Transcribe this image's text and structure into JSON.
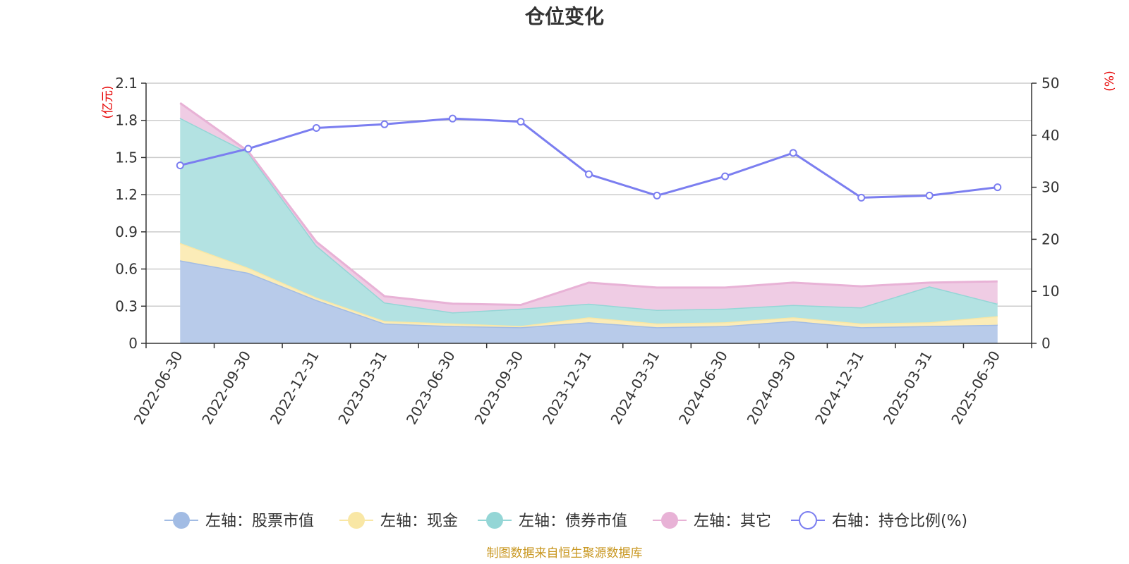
{
  "chart_data": {
    "type": "area",
    "title": "仓位变化",
    "left_axis_unit": "(亿元)",
    "right_axis_unit": "(%)",
    "left_ylim": [
      0,
      2.1
    ],
    "left_ticks": [
      "0",
      "0.3",
      "0.6",
      "0.9",
      "1.2",
      "1.5",
      "1.8",
      "2.1"
    ],
    "right_ylim": [
      0,
      50
    ],
    "right_ticks": [
      "0",
      "10",
      "20",
      "30",
      "40",
      "50"
    ],
    "grid": true,
    "stacked": true,
    "legend_position": "bottom",
    "categories": [
      "2022-06-30",
      "2022-09-30",
      "2022-12-31",
      "2023-03-31",
      "2023-06-30",
      "2023-09-30",
      "2023-12-31",
      "2024-03-31",
      "2024-06-30",
      "2024-09-30",
      "2024-12-31",
      "2025-03-31",
      "2025-06-30"
    ],
    "series": [
      {
        "name": "左轴：股票市值",
        "axis": "left",
        "kind": "area",
        "color": "#a2bce4",
        "fill": "#b8cbea",
        "values": [
          0.67,
          0.57,
          0.35,
          0.16,
          0.14,
          0.13,
          0.17,
          0.13,
          0.14,
          0.18,
          0.13,
          0.14,
          0.15
        ]
      },
      {
        "name": "左轴：现金",
        "axis": "left",
        "kind": "area",
        "color": "#f9e7a5",
        "fill": "#fbecb8",
        "values": [
          0.14,
          0.04,
          0.02,
          0.02,
          0.02,
          0.01,
          0.04,
          0.03,
          0.03,
          0.03,
          0.03,
          0.03,
          0.07
        ]
      },
      {
        "name": "左轴：债券市值",
        "axis": "left",
        "kind": "area",
        "color": "#94d6d6",
        "fill": "#b3e2e2",
        "values": [
          1.01,
          0.93,
          0.42,
          0.15,
          0.09,
          0.14,
          0.11,
          0.11,
          0.11,
          0.1,
          0.13,
          0.29,
          0.1
        ]
      },
      {
        "name": "左轴：其它",
        "axis": "left",
        "kind": "area",
        "color": "#e8b2d6",
        "fill": "#efcce4",
        "values": [
          0.12,
          0.01,
          0.03,
          0.05,
          0.07,
          0.03,
          0.17,
          0.18,
          0.17,
          0.18,
          0.17,
          0.03,
          0.18
        ]
      },
      {
        "name": "右轴：持仓比例(%)",
        "axis": "right",
        "kind": "line",
        "color": "#7b7ef0",
        "values": [
          34.2,
          37.4,
          41.4,
          42.1,
          43.2,
          42.6,
          32.5,
          28.4,
          32.1,
          36.6,
          28.0,
          28.4,
          30.0
        ]
      }
    ],
    "source": "制图数据来自恒生聚源数据库"
  }
}
